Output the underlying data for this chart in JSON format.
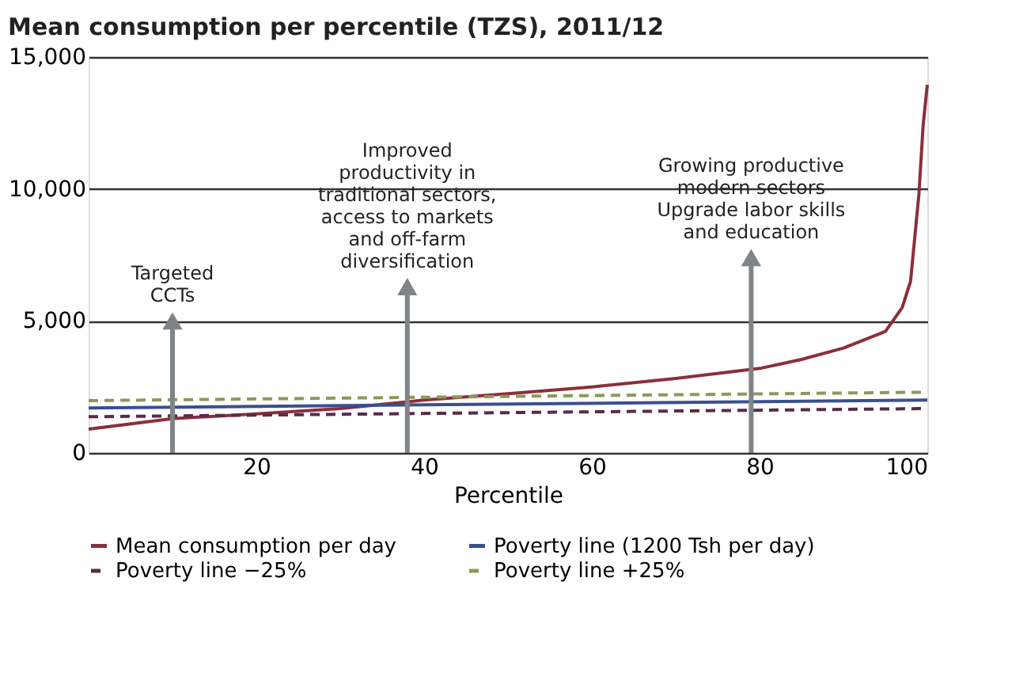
{
  "chart_data": {
    "type": "line",
    "title": "Mean consumption per percentile (TZS), 2011/12",
    "xlabel": "Percentile",
    "xlim": [
      0,
      100
    ],
    "xticks": [
      20,
      40,
      60,
      80,
      100
    ],
    "ylim": [
      0,
      15000
    ],
    "yticks": [
      0,
      {
        "value": 5000,
        "label": "5,000"
      },
      {
        "value": 10000,
        "label": "10,000"
      },
      {
        "value": 15000,
        "label": "15,000"
      }
    ],
    "grid": "y",
    "legend": "bottom",
    "marker": "none",
    "series": [
      {
        "name": "Mean consumption per day",
        "color": "#8b2f3a",
        "line_style": "solid",
        "x": [
          0,
          10,
          20,
          30,
          40,
          50,
          60,
          70,
          80,
          85,
          90,
          95,
          97,
          98,
          99,
          99.5,
          100
        ],
        "values": [
          900,
          1300,
          1480,
          1680,
          2000,
          2240,
          2500,
          2820,
          3200,
          3540,
          3970,
          4600,
          5500,
          6500,
          9800,
          12400,
          13950
        ]
      },
      {
        "name": "Poverty line (1200 Tsh per day)",
        "color": "#3a4f8f",
        "line_style": "solid",
        "x": [
          0,
          100
        ],
        "values": [
          1700,
          2000
        ]
      },
      {
        "name": "Poverty line −25%",
        "color": "#5a2a4a",
        "line_style": "dashed",
        "x": [
          0,
          100
        ],
        "values": [
          1370,
          1680
        ]
      },
      {
        "name": "Poverty line +25%",
        "color": "#8a9a5a",
        "line_style": "dashed",
        "x": [
          0,
          100
        ],
        "values": [
          1980,
          2300
        ]
      }
    ],
    "annotations": [
      {
        "text": "Targeted CCTs",
        "x": 10,
        "y": 5000
      },
      {
        "text": "Improved productivity in traditional sectors, access to markets and off-farm diversification",
        "x": 38,
        "y": 6300
      },
      {
        "text": "Growing productive modern sectors Upgrade labor skills and education",
        "x": 79,
        "y": 7400
      }
    ]
  }
}
